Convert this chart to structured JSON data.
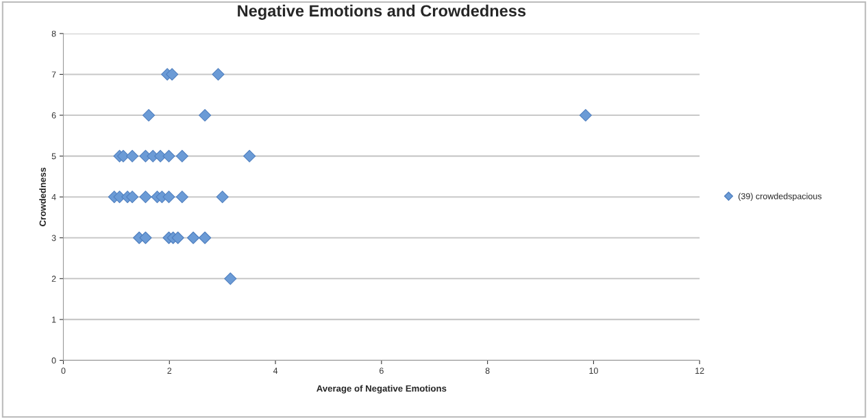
{
  "chart_data": {
    "type": "scatter",
    "title": "Negative Emotions and Crowdedness",
    "xlabel": "Average of Negative Emotions",
    "ylabel": "Crowdedness",
    "series": [
      {
        "name": "(39) crowdedspacious",
        "color": "#6b9bd6",
        "x": [
          1.96,
          2.05,
          2.92,
          1.61,
          2.67,
          9.85,
          1.06,
          1.13,
          1.3,
          1.55,
          1.69,
          1.83,
          1.99,
          2.24,
          3.51,
          0.96,
          1.06,
          1.21,
          1.3,
          1.55,
          1.77,
          1.86,
          1.99,
          2.24,
          3.0,
          1.43,
          1.55,
          1.99,
          2.07,
          2.16,
          2.45,
          2.67,
          3.15
        ],
        "values": [
          7,
          7,
          7,
          6,
          6,
          6,
          5,
          5,
          5,
          5,
          5,
          5,
          5,
          5,
          5,
          4,
          4,
          4,
          4,
          4,
          4,
          4,
          4,
          4,
          4,
          3,
          3,
          3,
          3,
          3,
          3,
          3,
          2
        ]
      }
    ],
    "xlim": [
      0,
      12
    ],
    "xticks": [
      0,
      2,
      4,
      6,
      8,
      10,
      12
    ],
    "ylim": [
      0,
      8
    ],
    "yticks": [
      0,
      1,
      2,
      3,
      4,
      5,
      6,
      7,
      8
    ],
    "grid": "y",
    "legend": "right",
    "marker": "diamond"
  }
}
